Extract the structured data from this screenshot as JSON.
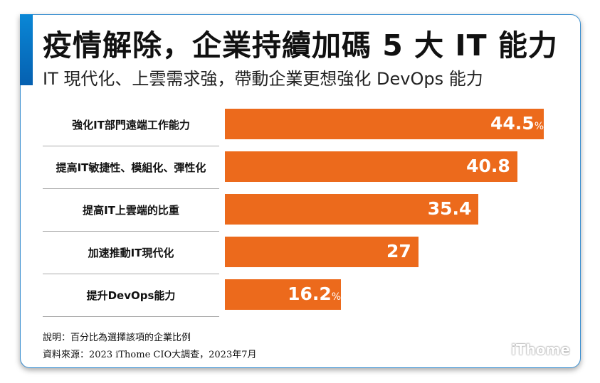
{
  "header": {
    "title": "疫情解除，企業持續加碼 5 大 IT 能力",
    "subtitle": "IT 現代化、上雲需求強，帶動企業更想強化 DevOps 能力"
  },
  "chart_data": {
    "type": "bar",
    "orientation": "horizontal",
    "categories": [
      "強化IT部門遠端工作能力",
      "提高IT敏捷性、模組化、彈性化",
      "提高IT上雲端的比重",
      "加速推動IT現代化",
      "提升DevOps能力"
    ],
    "values": [
      44.5,
      40.8,
      35.4,
      27,
      16.2
    ],
    "value_labels": [
      "44.5",
      "40.8",
      "35.4",
      "27",
      "16.2"
    ],
    "unit": "%",
    "bar_color": "#ec6a1c",
    "xlim": [
      0,
      44.5
    ]
  },
  "footer": {
    "note": "說明：百分比為選擇該項的企業比例",
    "source": "資料來源：2023 iThome CIO大調查，2023年7月",
    "logo": "iThome"
  },
  "colors": {
    "accent": "#0a87d6",
    "border": "#3a8fd0"
  }
}
